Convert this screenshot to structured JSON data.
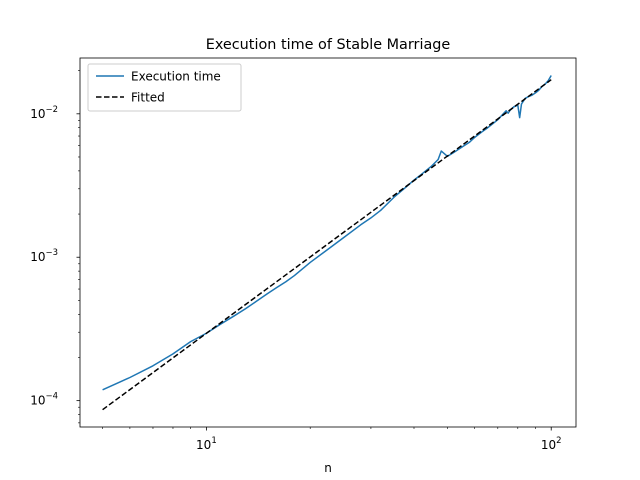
{
  "chart_data": {
    "type": "line",
    "title": "Execution time of Stable Marriage",
    "xlabel": "n",
    "ylabel": "",
    "xscale": "log",
    "yscale": "log",
    "xlim": [
      4.3,
      118
    ],
    "ylim": [
      6.55e-05,
      0.0245
    ],
    "grid": false,
    "legend_position": "top-left",
    "x_ticks": [
      {
        "value": 10,
        "base": "10",
        "exp": "1"
      },
      {
        "value": 100,
        "base": "10",
        "exp": "2"
      }
    ],
    "y_ticks": [
      {
        "value": 0.0001,
        "base": "10",
        "exp": "−4"
      },
      {
        "value": 0.001,
        "base": "10",
        "exp": "−3"
      },
      {
        "value": 0.01,
        "base": "10",
        "exp": "−2"
      }
    ],
    "series": [
      {
        "name": "Execution time",
        "color": "#1f77b4",
        "style": "solid",
        "x": [
          5,
          6,
          7,
          8,
          9,
          10,
          11,
          12,
          13,
          14,
          15,
          16,
          17,
          18,
          20,
          22,
          25,
          28,
          30,
          32,
          35,
          38,
          40,
          42,
          45,
          47,
          48,
          50,
          52,
          55,
          58,
          60,
          63,
          65,
          68,
          70,
          72,
          74,
          75,
          76,
          78,
          80,
          81,
          82,
          84,
          86,
          88,
          90,
          92,
          94,
          96,
          98,
          100
        ],
        "y": [
          0.000119,
          0.000145,
          0.000175,
          0.000212,
          0.000258,
          0.000295,
          0.000342,
          0.000388,
          0.000438,
          0.000495,
          0.000555,
          0.000615,
          0.000675,
          0.000745,
          0.00092,
          0.00109,
          0.00137,
          0.00168,
          0.00188,
          0.00212,
          0.00262,
          0.0031,
          0.00345,
          0.00378,
          0.00432,
          0.0048,
          0.0055,
          0.00505,
          0.00535,
          0.00585,
          0.00635,
          0.00685,
          0.0075,
          0.0079,
          0.0086,
          0.0091,
          0.0098,
          0.0105,
          0.0101,
          0.0106,
          0.0112,
          0.0115,
          0.0094,
          0.0117,
          0.0128,
          0.0132,
          0.0135,
          0.014,
          0.0146,
          0.0155,
          0.0161,
          0.017,
          0.0185
        ]
      },
      {
        "name": "Fitted",
        "color": "#000000",
        "style": "dashed",
        "x": [
          5,
          100
        ],
        "y": [
          8.65e-05,
          0.0173
        ]
      }
    ]
  }
}
